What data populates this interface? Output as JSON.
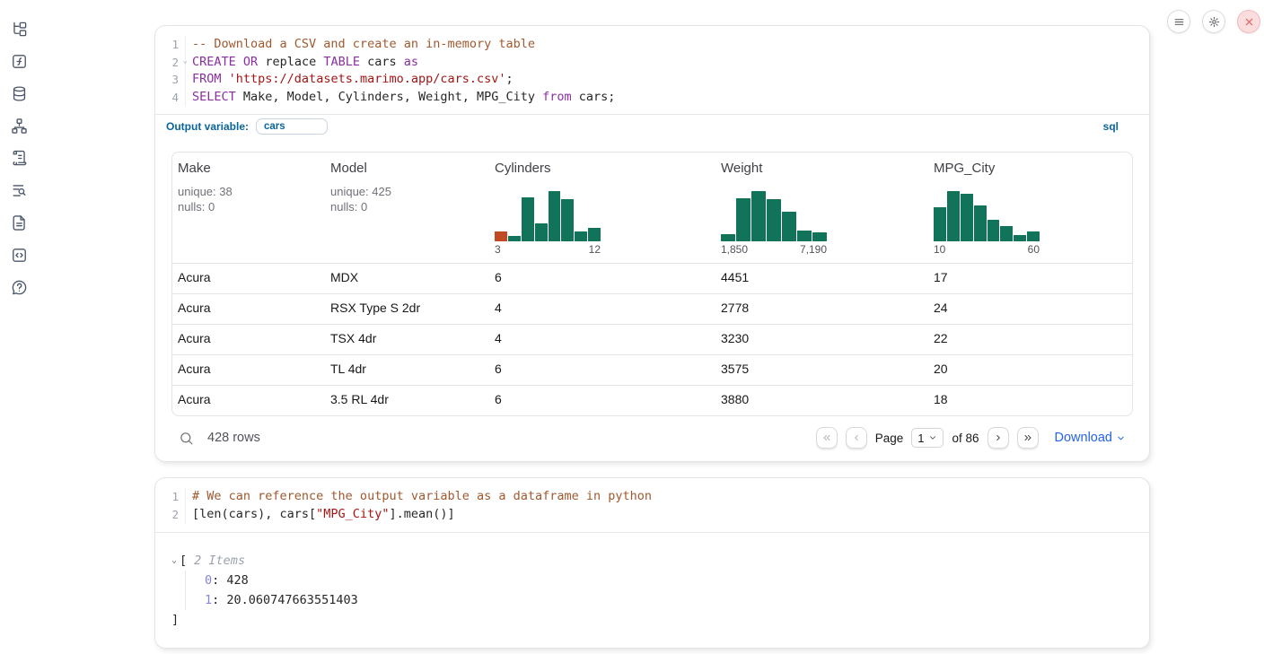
{
  "theme": {
    "accent_blue": "#0b6599",
    "link_blue": "#2563eb",
    "hist_green": "#11745a",
    "hist_orange": "#c04a21"
  },
  "sidebar": {
    "icons": [
      "file-tree",
      "function-square",
      "database",
      "dependency-graph",
      "scroll-log",
      "search-list",
      "document",
      "snippets",
      "help-bubble"
    ]
  },
  "topbar": {
    "icons": [
      "menu",
      "settings",
      "close"
    ]
  },
  "cell1": {
    "language_badge": "sql",
    "output_variable": {
      "label": "Output variable:",
      "value": "cars"
    },
    "code": {
      "lines": [
        {
          "num": "1",
          "tokens": [
            {
              "t": "-- Download a CSV and create an in-memory table",
              "c": "com"
            }
          ]
        },
        {
          "num": "2",
          "fold": true,
          "tokens": [
            {
              "t": "CREATE",
              "c": "kw"
            },
            {
              "t": " "
            },
            {
              "t": "OR",
              "c": "kw"
            },
            {
              "t": " replace "
            },
            {
              "t": "TABLE",
              "c": "kw"
            },
            {
              "t": " cars "
            },
            {
              "t": "as",
              "c": "kw"
            }
          ]
        },
        {
          "num": "3",
          "tokens": [
            {
              "t": "FROM",
              "c": "kw"
            },
            {
              "t": " "
            },
            {
              "t": "'https://datasets.marimo.app/cars.csv'",
              "c": "str"
            },
            {
              "t": ";"
            }
          ]
        },
        {
          "num": "4",
          "tokens": [
            {
              "t": "SELECT",
              "c": "kw"
            },
            {
              "t": " Make, Model, Cylinders, Weight, MPG_City "
            },
            {
              "t": "from",
              "c": "kw"
            },
            {
              "t": " cars;"
            }
          ]
        }
      ]
    },
    "table": {
      "columns": [
        {
          "name": "Make",
          "stats": [
            "unique: 38",
            "nulls: 0"
          ]
        },
        {
          "name": "Model",
          "stats": [
            "unique: 425",
            "nulls: 0"
          ]
        },
        {
          "name": "Cylinders",
          "histogram": {
            "min": "3",
            "max": "12",
            "bars": [
              20,
              12,
              88,
              37,
              100,
              85,
              21,
              27
            ],
            "first_bar_orange": true
          }
        },
        {
          "name": "Weight",
          "histogram": {
            "min": "1,850",
            "max": "7,190",
            "bars": [
              15,
              87,
              100,
              85,
              60,
              22,
              18
            ]
          }
        },
        {
          "name": "MPG_City",
          "histogram": {
            "min": "10",
            "max": "60",
            "bars": [
              69,
              100,
              95,
              73,
              44,
              31,
              13,
              20
            ]
          }
        }
      ],
      "rows": [
        [
          "Acura",
          "MDX",
          "6",
          "4451",
          "17"
        ],
        [
          "Acura",
          "RSX Type S 2dr",
          "4",
          "2778",
          "24"
        ],
        [
          "Acura",
          "TSX 4dr",
          "4",
          "3230",
          "22"
        ],
        [
          "Acura",
          "TL 4dr",
          "6",
          "3575",
          "20"
        ],
        [
          "Acura",
          "3.5 RL 4dr",
          "6",
          "3880",
          "18"
        ]
      ]
    },
    "footer": {
      "row_count": "428 rows",
      "page_label": "Page",
      "page_value": "1",
      "of_label": "of 86",
      "download_label": "Download"
    }
  },
  "cell2": {
    "code": {
      "lines": [
        {
          "num": "1",
          "tokens": [
            {
              "t": "# We can reference the output variable as a dataframe in python",
              "c": "com"
            }
          ]
        },
        {
          "num": "2",
          "tokens": [
            {
              "t": "[len(cars), cars["
            },
            {
              "t": "\"MPG_City\"",
              "c": "str"
            },
            {
              "t": "].mean()]"
            }
          ]
        }
      ]
    },
    "output": {
      "open_bracket": "[",
      "items_label": "2 Items",
      "entries": [
        {
          "index": "0",
          "value": "428"
        },
        {
          "index": "1",
          "value": "20.060747663551403"
        }
      ],
      "close_bracket": "]"
    }
  },
  "chart_data": [
    {
      "type": "bar",
      "subtype": "column-summary-histogram",
      "column": "Cylinders",
      "x_range": [
        3,
        12
      ],
      "bar_heights_pct": [
        20,
        12,
        88,
        37,
        100,
        85,
        21,
        27
      ]
    },
    {
      "type": "bar",
      "subtype": "column-summary-histogram",
      "column": "Weight",
      "x_range": [
        1850,
        7190
      ],
      "bar_heights_pct": [
        15,
        87,
        100,
        85,
        60,
        22,
        18
      ]
    },
    {
      "type": "bar",
      "subtype": "column-summary-histogram",
      "column": "MPG_City",
      "x_range": [
        10,
        60
      ],
      "bar_heights_pct": [
        69,
        100,
        95,
        73,
        44,
        31,
        13,
        20
      ]
    }
  ]
}
